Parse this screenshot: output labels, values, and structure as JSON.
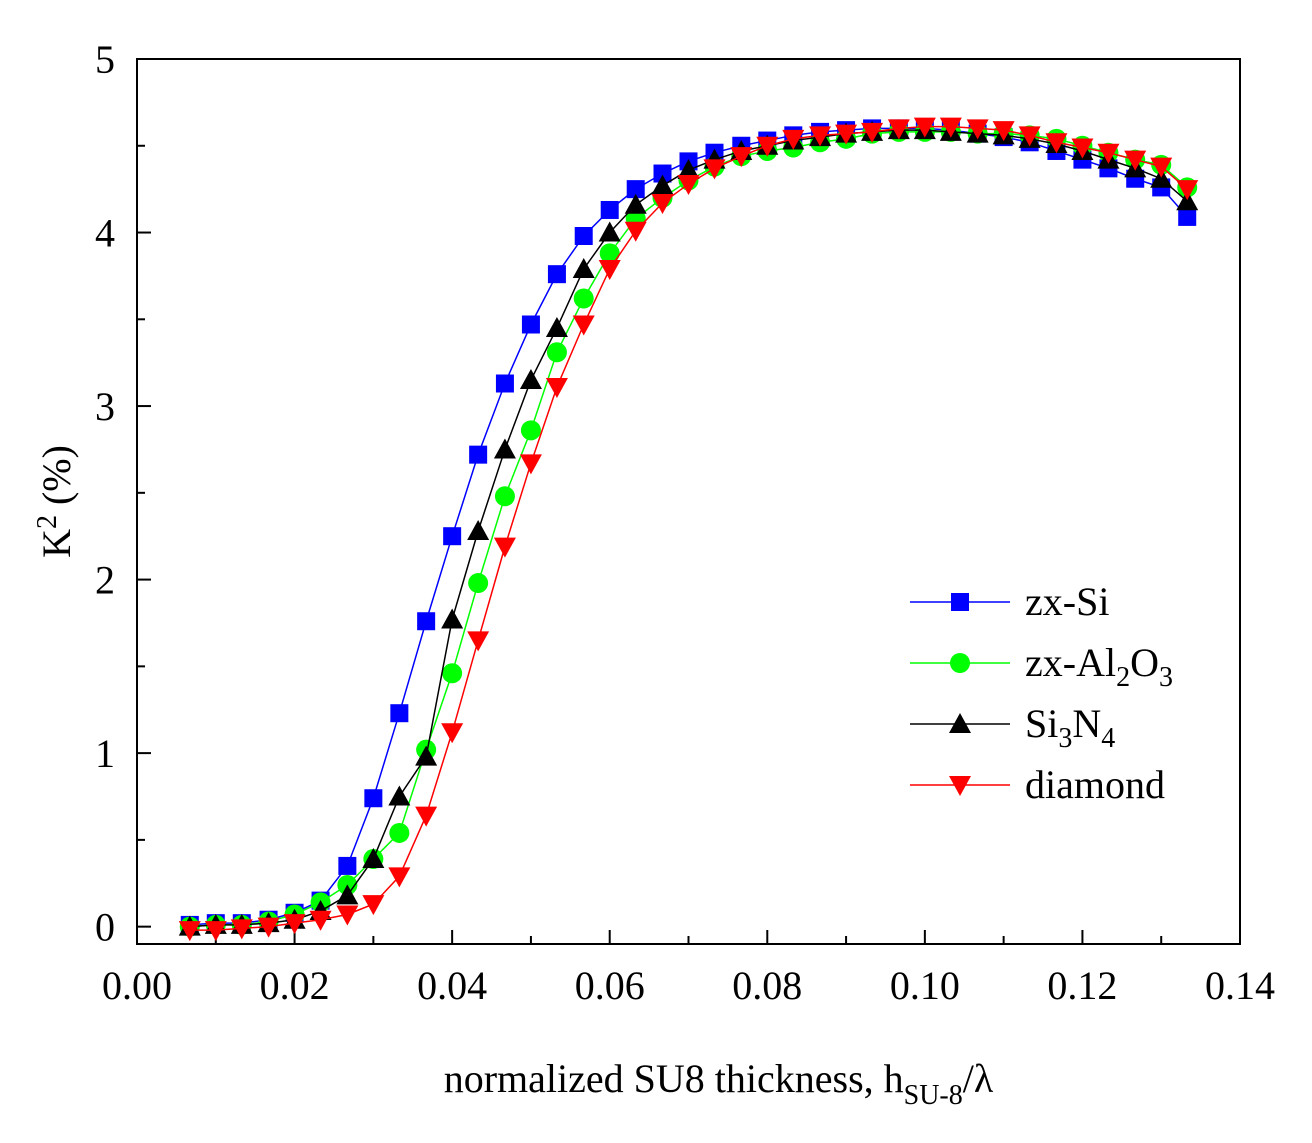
{
  "chart_data": {
    "type": "line",
    "title": "",
    "xlabel": "normalized SU8 thickness, h",
    "xlabel_sub": "SU-8",
    "xlabel_tail": "/λ",
    "ylabel_main": "K",
    "ylabel_sup": "2",
    "ylabel_tail": " (%)",
    "xlim": [
      0.0,
      0.14
    ],
    "ylim": [
      -0.1,
      5.0
    ],
    "xticks": [
      0.0,
      0.02,
      0.04,
      0.06,
      0.08,
      0.1,
      0.12,
      0.14
    ],
    "xtick_labels": [
      "0.00",
      "0.02",
      "0.04",
      "0.06",
      "0.08",
      "0.10",
      "0.12",
      "0.14"
    ],
    "yticks": [
      0,
      1,
      2,
      3,
      4,
      5
    ],
    "ytick_labels": [
      "0",
      "1",
      "2",
      "3",
      "4",
      "5"
    ],
    "legend_position": "center-right",
    "x": [
      0.0067,
      0.01,
      0.0133,
      0.0167,
      0.02,
      0.0233,
      0.0267,
      0.03,
      0.0333,
      0.0367,
      0.04,
      0.0433,
      0.0467,
      0.05,
      0.0533,
      0.0567,
      0.06,
      0.0633,
      0.0667,
      0.07,
      0.0733,
      0.0767,
      0.08,
      0.0833,
      0.0867,
      0.09,
      0.0933,
      0.0967,
      0.1,
      0.1033,
      0.1067,
      0.11,
      0.1133,
      0.1167,
      0.12,
      0.1233,
      0.1267,
      0.13,
      0.1333
    ],
    "series": [
      {
        "name": "zx-Si",
        "legend_parts": [
          [
            "zx-Si",
            ""
          ]
        ],
        "color": "#0000ff",
        "marker": "square",
        "values": [
          0.01,
          0.02,
          0.02,
          0.04,
          0.08,
          0.15,
          0.35,
          0.74,
          1.23,
          1.76,
          2.25,
          2.72,
          3.13,
          3.47,
          3.76,
          3.98,
          4.13,
          4.25,
          4.34,
          4.41,
          4.46,
          4.5,
          4.53,
          4.56,
          4.58,
          4.59,
          4.6,
          4.6,
          4.6,
          4.59,
          4.57,
          4.55,
          4.52,
          4.47,
          4.42,
          4.37,
          4.31,
          4.26,
          4.09
        ]
      },
      {
        "name": "zx-Al2O3",
        "legend_parts": [
          [
            "zx-Al",
            ""
          ],
          [
            "2",
            "sub"
          ],
          [
            "O",
            ""
          ],
          [
            "3",
            "sub"
          ]
        ],
        "color": "#00ff00",
        "marker": "circle",
        "values": [
          0.0,
          0.01,
          0.01,
          0.03,
          0.07,
          0.14,
          0.24,
          0.39,
          0.54,
          1.02,
          1.46,
          1.98,
          2.48,
          2.86,
          3.31,
          3.62,
          3.88,
          4.08,
          4.2,
          4.3,
          4.38,
          4.44,
          4.47,
          4.49,
          4.52,
          4.54,
          4.57,
          4.58,
          4.58,
          4.58,
          4.57,
          4.57,
          4.56,
          4.54,
          4.5,
          4.46,
          4.42,
          4.39,
          4.26
        ]
      },
      {
        "name": "Si3N4",
        "legend_parts": [
          [
            "Si",
            ""
          ],
          [
            "3",
            "sub"
          ],
          [
            "N",
            ""
          ],
          [
            "4",
            "sub"
          ]
        ],
        "color": "#000000",
        "marker": "triangle-up",
        "values": [
          0.0,
          0.01,
          0.01,
          0.02,
          0.04,
          0.09,
          0.18,
          0.39,
          0.75,
          0.98,
          1.77,
          2.28,
          2.75,
          3.15,
          3.45,
          3.79,
          4.0,
          4.16,
          4.27,
          4.36,
          4.42,
          4.47,
          4.5,
          4.53,
          4.55,
          4.57,
          4.58,
          4.59,
          4.59,
          4.58,
          4.57,
          4.56,
          4.54,
          4.51,
          4.47,
          4.42,
          4.37,
          4.31,
          4.18
        ]
      },
      {
        "name": "diamond",
        "legend_parts": [
          [
            "diamond",
            ""
          ]
        ],
        "color": "#ff0000",
        "marker": "triangle-down",
        "values": [
          -0.02,
          -0.02,
          -0.01,
          0.0,
          0.02,
          0.04,
          0.07,
          0.13,
          0.29,
          0.64,
          1.12,
          1.65,
          2.19,
          2.67,
          3.11,
          3.47,
          3.79,
          4.01,
          4.17,
          4.28,
          4.37,
          4.44,
          4.5,
          4.54,
          4.56,
          4.57,
          4.58,
          4.6,
          4.61,
          4.61,
          4.6,
          4.59,
          4.56,
          4.52,
          4.49,
          4.46,
          4.42,
          4.38,
          4.25
        ]
      }
    ]
  }
}
